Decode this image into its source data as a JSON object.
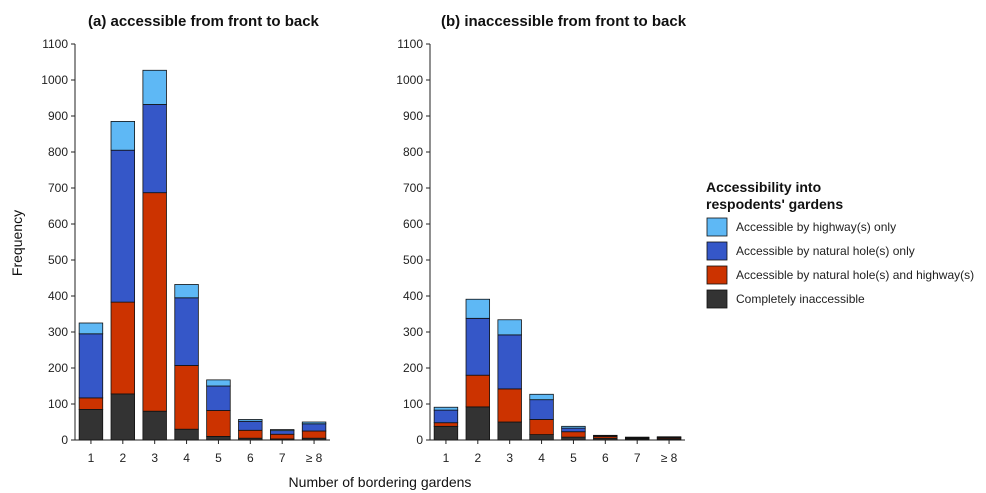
{
  "xlabel": "Number of bordering gardens",
  "ylabel": "Frequency",
  "legend": {
    "title_line1": "Accessibility into",
    "title_line2": "respodents' gardens",
    "placement": "right"
  },
  "colors": {
    "highway_only": "#5eb8f5",
    "natural_hole_only": "#3557c8",
    "both": "#cc3300",
    "inaccessible": "#333333"
  },
  "chart_data": [
    {
      "type": "bar",
      "stacked": true,
      "title": "(a) accessible from front to back",
      "categories": [
        "1",
        "2",
        "3",
        "4",
        "5",
        "6",
        "7",
        "≥ 8"
      ],
      "ylim": [
        0,
        1100
      ],
      "yticks": [
        0,
        100,
        200,
        300,
        400,
        500,
        600,
        700,
        800,
        900,
        1000,
        1100
      ],
      "grid": false,
      "series": [
        {
          "name": "Completely inaccessible",
          "key": "inaccessible",
          "values": [
            85,
            128,
            80,
            30,
            10,
            5,
            3,
            5
          ]
        },
        {
          "name": "Accessible by natural hole(s) and highway(s)",
          "key": "both",
          "values": [
            32,
            255,
            607,
            177,
            72,
            22,
            13,
            20
          ]
        },
        {
          "name": "Accessible by natural hole(s) only",
          "key": "natural_hole_only",
          "values": [
            178,
            422,
            245,
            188,
            68,
            25,
            10,
            20
          ]
        },
        {
          "name": "Accessible by highway(s) only",
          "key": "highway_only",
          "values": [
            30,
            80,
            95,
            37,
            17,
            5,
            3,
            5
          ]
        }
      ]
    },
    {
      "type": "bar",
      "stacked": true,
      "title": "(b) inaccessible from front to back",
      "categories": [
        "1",
        "2",
        "3",
        "4",
        "5",
        "6",
        "7",
        "≥ 8"
      ],
      "ylim": [
        0,
        1100
      ],
      "yticks": [
        0,
        100,
        200,
        300,
        400,
        500,
        600,
        700,
        800,
        900,
        1000,
        1100
      ],
      "grid": false,
      "series": [
        {
          "name": "Completely inaccessible",
          "key": "inaccessible",
          "values": [
            38,
            92,
            50,
            15,
            8,
            5,
            3,
            3
          ]
        },
        {
          "name": "Accessible by natural hole(s) and highway(s)",
          "key": "both",
          "values": [
            10,
            88,
            92,
            42,
            15,
            5,
            2,
            3
          ]
        },
        {
          "name": "Accessible by natural hole(s) only",
          "key": "natural_hole_only",
          "values": [
            35,
            158,
            150,
            55,
            10,
            2,
            2,
            2
          ]
        },
        {
          "name": "Accessible by highway(s) only",
          "key": "highway_only",
          "values": [
            8,
            53,
            42,
            15,
            5,
            1,
            1,
            1
          ]
        }
      ]
    }
  ]
}
